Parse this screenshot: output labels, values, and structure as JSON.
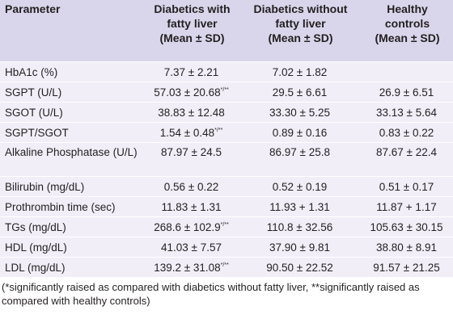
{
  "headers": {
    "parameter": "Parameter",
    "col1_line1": "Diabetics with",
    "col1_line2": "fatty liver",
    "col1_line3": "(Mean ± SD)",
    "col2_line1": "Diabetics without",
    "col2_line2": "fatty liver",
    "col2_line3": "(Mean ± SD)",
    "col3_line1": "Healthy",
    "col3_line2": "controls",
    "col3_line3": "(Mean ± SD)"
  },
  "rows": [
    {
      "param": "HbA1c (%)",
      "v1": "7.37 ± 2.21",
      "v1_sup": "",
      "v2": "7.02 ± 1.82",
      "v3": ""
    },
    {
      "param": "SGPT (U/L)",
      "v1": "57.03 ± 20.68",
      "v1_sup": "*/**",
      "v2": "29.5 ± 6.61",
      "v3": "26.9 ± 6.51"
    },
    {
      "param": "SGOT (U/L)",
      "v1": "38.83 ± 12.48",
      "v1_sup": "",
      "v2": "33.30 ± 5.25",
      "v3": "33.13 ± 5.64"
    },
    {
      "param": "SGPT/SGOT",
      "v1": "1.54 ± 0.48",
      "v1_sup": "*/**",
      "v2": "0.89 ± 0.16",
      "v3": "0.83 ± 0.22"
    },
    {
      "param": "Alkaline Phosphatase (U/L)",
      "v1": "87.97 ± 24.5",
      "v1_sup": "",
      "v2": "86.97 ± 25.8",
      "v3": "87.67 ± 22.4"
    },
    {
      "param": "Bilirubin (mg/dL)",
      "v1": "0.56 ± 0.22",
      "v1_sup": "",
      "v2": "0.52 ± 0.19",
      "v3": "0.51 ± 0.17"
    },
    {
      "param": "Prothrombin time (sec)",
      "v1": "11.83 ± 1.31",
      "v1_sup": "",
      "v2": "11.93 + 1.31",
      "v3": "11.87 + 1.17"
    },
    {
      "param": "TGs (mg/dL)",
      "v1": "268.6 ± 102.9",
      "v1_sup": "*/**",
      "v2": "110.8 ± 32.56",
      "v3": "105.63 ± 30.15"
    },
    {
      "param": "HDL (mg/dL)",
      "v1": "41.03 ± 7.57",
      "v1_sup": "",
      "v2": "37.90 ± 9.81",
      "v3": "38.80 ± 8.91"
    },
    {
      "param": "LDL (mg/dL)",
      "v1": "139.2 ± 31.08",
      "v1_sup": "*/**",
      "v2": "90.50 ± 22.52",
      "v3": "91.57 ± 21.25"
    }
  ],
  "footnote": "(*significantly raised as compared with diabetics without fatty liver, **significantly raised as compared with healthy controls)",
  "colors": {
    "header_bg": "#d9d6eb",
    "row_bg": "#f1eef8",
    "text": "#231f20"
  }
}
